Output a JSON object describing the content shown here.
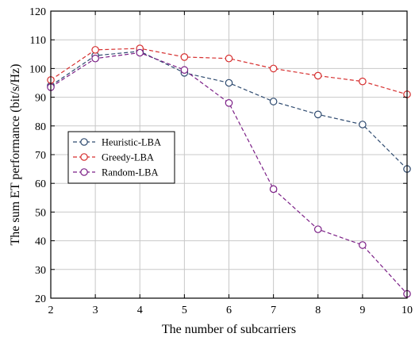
{
  "chart_data": {
    "type": "line",
    "xlabel": "The number of subcarriers",
    "ylabel": "The sum ET performance (bit/s/Hz)",
    "xlim": [
      2,
      10
    ],
    "ylim": [
      20,
      120
    ],
    "xticks": [
      2,
      3,
      4,
      5,
      6,
      7,
      8,
      9,
      10
    ],
    "yticks": [
      20,
      30,
      40,
      50,
      60,
      70,
      80,
      90,
      100,
      110,
      120
    ],
    "grid": true,
    "legend_position": "center-left",
    "x": [
      2,
      3,
      4,
      5,
      6,
      7,
      8,
      9,
      10
    ],
    "series": [
      {
        "name": "Heuristic-LBA",
        "color": "#2e4a6f",
        "marker": "circle",
        "line": "dashed",
        "values": [
          94,
          104.5,
          106,
          98.5,
          95,
          88.5,
          84,
          80.5,
          65
        ]
      },
      {
        "name": "Greedy-LBA",
        "color": "#d62e2e",
        "marker": "circle",
        "line": "dashed",
        "values": [
          96,
          106.5,
          107,
          104,
          103.5,
          100,
          97.5,
          95.5,
          91
        ]
      },
      {
        "name": "Random-LBA",
        "color": "#7b1f86",
        "marker": "circle",
        "line": "dashed",
        "values": [
          93.5,
          103.5,
          105.5,
          99.5,
          88,
          58,
          44,
          38.5,
          21.5
        ]
      }
    ]
  }
}
